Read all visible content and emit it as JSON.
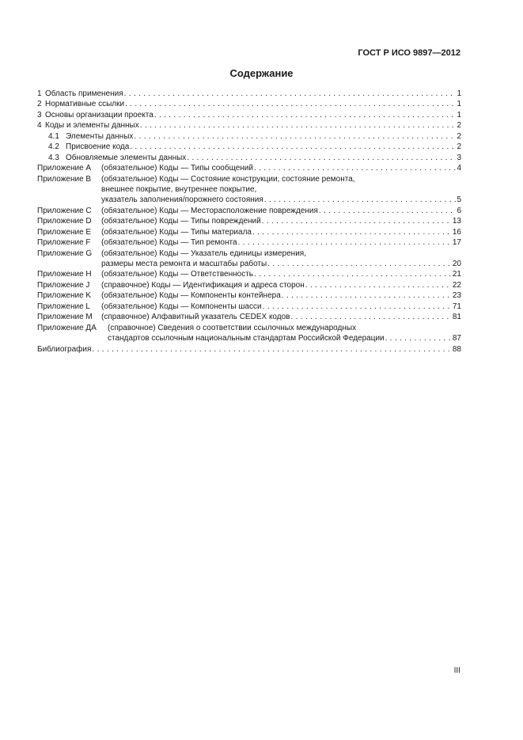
{
  "header": {
    "doc_id": "ГОСТ Р ИСО 9897—2012"
  },
  "title": "Содержание",
  "toc": {
    "entries": [
      {
        "kind": "sec",
        "number": "1",
        "lines": [
          "Область применения"
        ],
        "page": "1"
      },
      {
        "kind": "sec",
        "number": "2",
        "lines": [
          "Нормативные ссылки"
        ],
        "page": "1"
      },
      {
        "kind": "sec",
        "number": "3",
        "lines": [
          "Основы организации проекта"
        ],
        "page": "1"
      },
      {
        "kind": "sec",
        "number": "4",
        "lines": [
          "Коды и элементы данных"
        ],
        "page": "2"
      },
      {
        "kind": "sub",
        "number": "4.1",
        "lines": [
          "Элементы данных"
        ],
        "page": "2"
      },
      {
        "kind": "sub",
        "number": "4.2",
        "lines": [
          "Присвоение кода"
        ],
        "page": "2"
      },
      {
        "kind": "sub",
        "number": "4.3",
        "lines": [
          "Обновляемые элементы данных"
        ],
        "page": "3"
      },
      {
        "kind": "app",
        "number": "Приложение А",
        "lines": [
          "(обязательное) Коды — Типы сообщений"
        ],
        "page": "4"
      },
      {
        "kind": "app",
        "number": "Приложение В",
        "lines": [
          "(обязательное) Коды — Состояние конструкции, состояние ремонта,",
          "внешнее покрытие, внутреннее покрытие,",
          "указатель заполнения/порожнего состояния"
        ],
        "page": "5"
      },
      {
        "kind": "app",
        "number": "Приложение С",
        "lines": [
          "(обязательное) Коды — Месторасположение повреждения"
        ],
        "page": "6"
      },
      {
        "kind": "app",
        "number": "Приложение D",
        "lines": [
          "(обязательное) Коды — Типы повреждений"
        ],
        "page": "13"
      },
      {
        "kind": "app",
        "number": "Приложение E",
        "lines": [
          "(обязательное) Коды — Типы материала"
        ],
        "page": "16"
      },
      {
        "kind": "app",
        "number": "Приложение F",
        "lines": [
          "(обязательное) Коды — Тип ремонта"
        ],
        "page": "17"
      },
      {
        "kind": "app",
        "number": "Приложение G",
        "lines": [
          "(обязательное) Коды — Указатель единицы измерения,",
          "размеры места ремонта и масштабы работы"
        ],
        "page": "20"
      },
      {
        "kind": "app",
        "number": "Приложение H",
        "lines": [
          "(обязательное) Коды — Ответственность"
        ],
        "page": "21"
      },
      {
        "kind": "app",
        "number": "Приложение J",
        "lines": [
          "(справочное) Коды — Идентификация и адреса сторон"
        ],
        "page": "22"
      },
      {
        "kind": "app",
        "number": "Приложение K",
        "lines": [
          "(обязательное) Коды — Компоненты контейнера"
        ],
        "page": "23"
      },
      {
        "kind": "app",
        "number": "Приложение L",
        "lines": [
          "(обязательное) Коды — Компоненты шасси"
        ],
        "page": "71"
      },
      {
        "kind": "app",
        "number": "Приложение M",
        "lines": [
          "(справочное) Алфавитный указатель CEDEX кодов"
        ],
        "page": "81"
      },
      {
        "kind": "appw",
        "number": "Приложение ДА",
        "lines": [
          "(справочное) Сведения о соответствии ссылочных международных",
          "стандартов ссылочным национальным стандартам Российской Федерации"
        ],
        "page": "87"
      },
      {
        "kind": "plain",
        "number": "",
        "lines": [
          "Библиография"
        ],
        "page": "88"
      }
    ]
  },
  "folio": "III"
}
